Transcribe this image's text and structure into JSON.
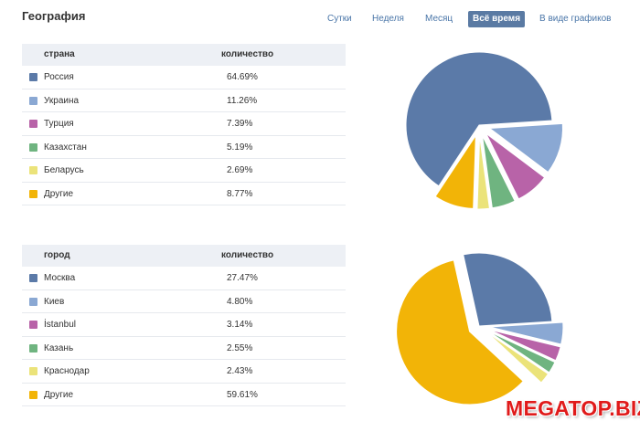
{
  "title": "География",
  "tabs": [
    {
      "label": "Сутки",
      "active": false
    },
    {
      "label": "Неделя",
      "active": false
    },
    {
      "label": "Месяц",
      "active": false
    },
    {
      "label": "Всё время",
      "active": true
    },
    {
      "label": "В виде графиков",
      "active": false
    }
  ],
  "colors": {
    "blue": "#5b7aa8",
    "lightblue": "#8aa8d3",
    "purple": "#b863a8",
    "green": "#6fb480",
    "yellow": "#ebe37a",
    "orange": "#f2b407"
  },
  "countries": {
    "col_name": "страна",
    "col_value": "количество",
    "rows": [
      {
        "name": "Россия",
        "value": "64.69%",
        "color": "#5b7aa8"
      },
      {
        "name": "Украина",
        "value": "11.26%",
        "color": "#8aa8d3"
      },
      {
        "name": "Турция",
        "value": "7.39%",
        "color": "#b863a8"
      },
      {
        "name": "Казахстан",
        "value": "5.19%",
        "color": "#6fb480"
      },
      {
        "name": "Беларусь",
        "value": "2.69%",
        "color": "#ebe37a"
      },
      {
        "name": "Другие",
        "value": "8.77%",
        "color": "#f2b407"
      }
    ]
  },
  "cities": {
    "col_name": "город",
    "col_value": "количество",
    "rows": [
      {
        "name": "Москва",
        "value": "27.47%",
        "color": "#5b7aa8"
      },
      {
        "name": "Киев",
        "value": "4.80%",
        "color": "#8aa8d3"
      },
      {
        "name": "İstanbul",
        "value": "3.14%",
        "color": "#b863a8"
      },
      {
        "name": "Казань",
        "value": "2.55%",
        "color": "#6fb480"
      },
      {
        "name": "Краснодар",
        "value": "2.43%",
        "color": "#ebe37a"
      },
      {
        "name": "Другие",
        "value": "59.61%",
        "color": "#f2b407"
      }
    ]
  },
  "watermark": "MEGATOP.BIZ",
  "chart_data": [
    {
      "type": "pie",
      "series": [
        {
          "values": [
            64.69,
            11.26,
            7.39,
            5.19,
            2.69,
            8.77
          ]
        }
      ],
      "categories": [
        "Россия",
        "Украина",
        "Турция",
        "Казахстан",
        "Беларусь",
        "Другие"
      ]
    },
    {
      "type": "pie",
      "series": [
        {
          "values": [
            27.47,
            4.8,
            3.14,
            2.55,
            2.43,
            59.61
          ]
        }
      ],
      "categories": [
        "Москва",
        "Киев",
        "İstanbul",
        "Казань",
        "Краснодар",
        "Другие"
      ]
    }
  ]
}
